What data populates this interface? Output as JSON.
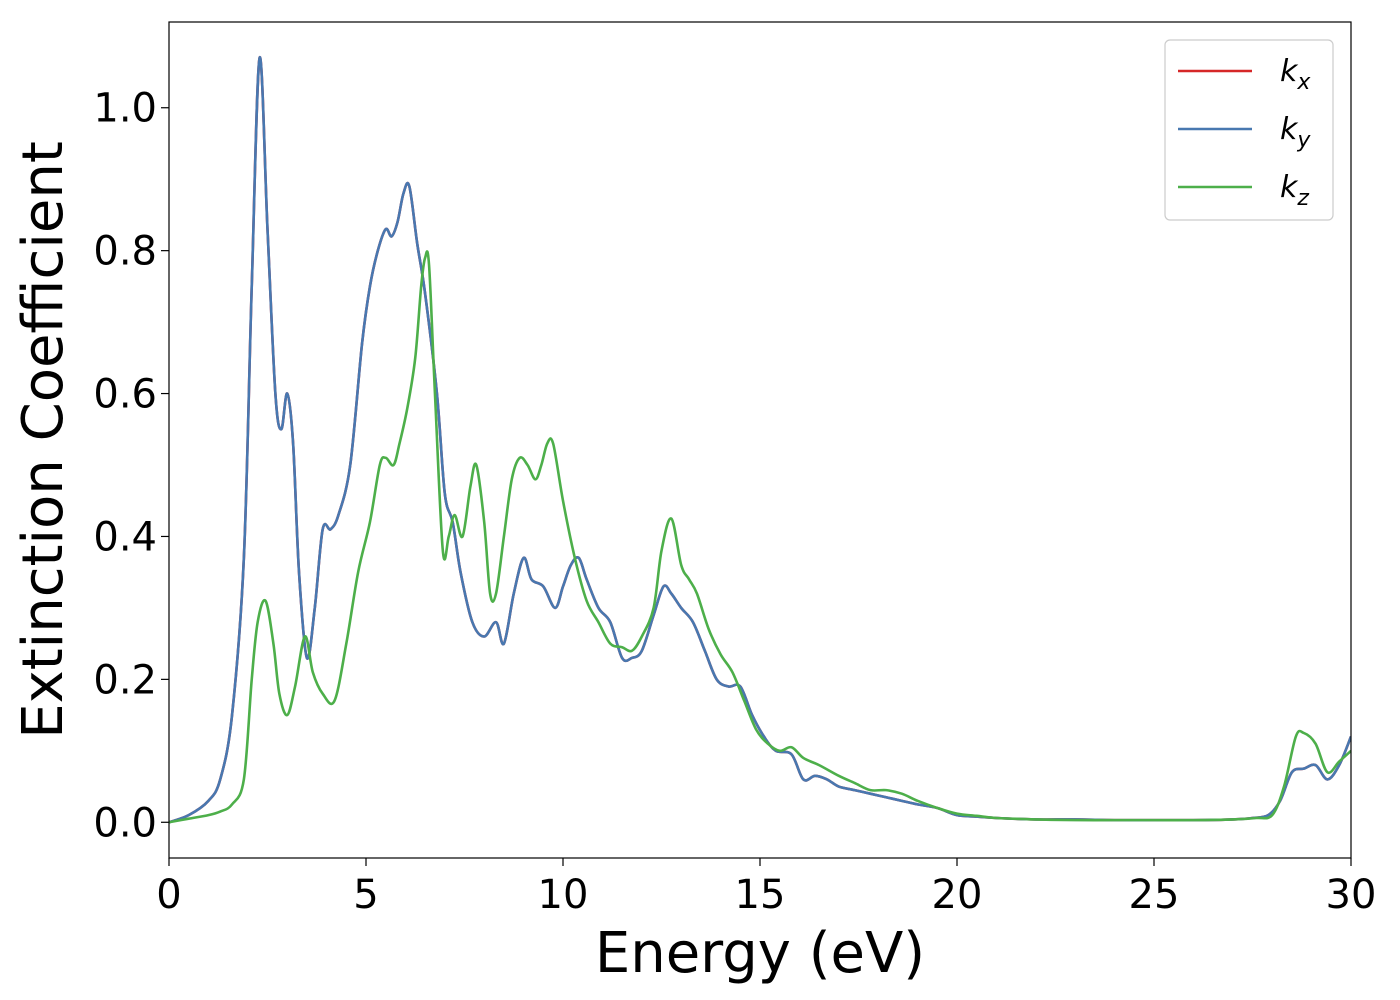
{
  "chart_data": {
    "type": "line",
    "xlabel": "Energy (eV)",
    "ylabel": "Extinction Coefficient",
    "xlim": [
      0,
      30
    ],
    "ylim": [
      -0.05,
      1.12
    ],
    "x_ticks": [
      0,
      5,
      10,
      15,
      20,
      25,
      30
    ],
    "x_tick_labels": [
      "0",
      "5",
      "10",
      "15",
      "20",
      "25",
      "30"
    ],
    "y_ticks": [
      0.0,
      0.2,
      0.4,
      0.6,
      0.8,
      1.0
    ],
    "y_tick_labels": [
      "0.0",
      "0.2",
      "0.4",
      "0.6",
      "0.8",
      "1.0"
    ],
    "grid": false,
    "legend_position": "top-right",
    "series": [
      {
        "name": "k_x",
        "label_main": "k",
        "label_sub": "x",
        "color": "#d62728",
        "x": [
          0,
          0.5,
          1.0,
          1.3,
          1.6,
          1.9,
          2.1,
          2.3,
          2.5,
          2.7,
          2.85,
          3.0,
          3.15,
          3.3,
          3.5,
          3.7,
          3.9,
          4.1,
          4.3,
          4.6,
          4.9,
          5.1,
          5.3,
          5.5,
          5.65,
          5.8,
          5.95,
          6.1,
          6.3,
          6.5,
          6.8,
          7.0,
          7.2,
          7.4,
          7.7,
          8.0,
          8.3,
          8.5,
          8.75,
          9.0,
          9.2,
          9.5,
          9.8,
          10.0,
          10.2,
          10.4,
          10.6,
          10.9,
          11.2,
          11.5,
          11.75,
          12.0,
          12.3,
          12.55,
          12.75,
          13.0,
          13.3,
          13.6,
          13.9,
          14.2,
          14.5,
          14.8,
          15.1,
          15.4,
          15.8,
          16.1,
          16.4,
          16.7,
          17.0,
          17.4,
          17.8,
          18.2,
          18.6,
          19.0,
          19.5,
          20.0,
          20.5,
          21.0,
          22.0,
          23.0,
          24.0,
          25.0,
          26.0,
          27.0,
          27.5,
          27.9,
          28.2,
          28.5,
          28.8,
          29.1,
          29.4,
          29.7,
          30.0
        ],
        "values": [
          0.0,
          0.01,
          0.03,
          0.06,
          0.15,
          0.37,
          0.75,
          1.07,
          0.83,
          0.6,
          0.55,
          0.6,
          0.53,
          0.35,
          0.23,
          0.3,
          0.41,
          0.41,
          0.43,
          0.5,
          0.67,
          0.75,
          0.8,
          0.83,
          0.82,
          0.84,
          0.88,
          0.89,
          0.81,
          0.74,
          0.6,
          0.46,
          0.42,
          0.35,
          0.28,
          0.26,
          0.28,
          0.25,
          0.32,
          0.37,
          0.34,
          0.33,
          0.3,
          0.33,
          0.36,
          0.37,
          0.34,
          0.3,
          0.28,
          0.23,
          0.23,
          0.24,
          0.29,
          0.33,
          0.32,
          0.3,
          0.28,
          0.24,
          0.2,
          0.19,
          0.19,
          0.15,
          0.12,
          0.1,
          0.095,
          0.06,
          0.065,
          0.06,
          0.05,
          0.045,
          0.04,
          0.035,
          0.03,
          0.025,
          0.02,
          0.01,
          0.008,
          0.006,
          0.004,
          0.004,
          0.003,
          0.003,
          0.003,
          0.004,
          0.006,
          0.01,
          0.03,
          0.07,
          0.075,
          0.08,
          0.06,
          0.08,
          0.12
        ]
      },
      {
        "name": "k_y",
        "label_main": "k",
        "label_sub": "y",
        "color": "#4878b0",
        "x": [
          0,
          0.5,
          1.0,
          1.3,
          1.6,
          1.9,
          2.1,
          2.3,
          2.5,
          2.7,
          2.85,
          3.0,
          3.15,
          3.3,
          3.5,
          3.7,
          3.9,
          4.1,
          4.3,
          4.6,
          4.9,
          5.1,
          5.3,
          5.5,
          5.65,
          5.8,
          5.95,
          6.1,
          6.3,
          6.5,
          6.8,
          7.0,
          7.2,
          7.4,
          7.7,
          8.0,
          8.3,
          8.5,
          8.75,
          9.0,
          9.2,
          9.5,
          9.8,
          10.0,
          10.2,
          10.4,
          10.6,
          10.9,
          11.2,
          11.5,
          11.75,
          12.0,
          12.3,
          12.55,
          12.75,
          13.0,
          13.3,
          13.6,
          13.9,
          14.2,
          14.5,
          14.8,
          15.1,
          15.4,
          15.8,
          16.1,
          16.4,
          16.7,
          17.0,
          17.4,
          17.8,
          18.2,
          18.6,
          19.0,
          19.5,
          20.0,
          20.5,
          21.0,
          22.0,
          23.0,
          24.0,
          25.0,
          26.0,
          27.0,
          27.5,
          27.9,
          28.2,
          28.5,
          28.8,
          29.1,
          29.4,
          29.7,
          30.0
        ],
        "values": [
          0.0,
          0.01,
          0.03,
          0.06,
          0.15,
          0.37,
          0.75,
          1.07,
          0.83,
          0.6,
          0.55,
          0.6,
          0.53,
          0.35,
          0.23,
          0.3,
          0.41,
          0.41,
          0.43,
          0.5,
          0.67,
          0.75,
          0.8,
          0.83,
          0.82,
          0.84,
          0.88,
          0.89,
          0.81,
          0.74,
          0.6,
          0.46,
          0.42,
          0.35,
          0.28,
          0.26,
          0.28,
          0.25,
          0.32,
          0.37,
          0.34,
          0.33,
          0.3,
          0.33,
          0.36,
          0.37,
          0.34,
          0.3,
          0.28,
          0.23,
          0.23,
          0.24,
          0.29,
          0.33,
          0.32,
          0.3,
          0.28,
          0.24,
          0.2,
          0.19,
          0.19,
          0.15,
          0.12,
          0.1,
          0.095,
          0.06,
          0.065,
          0.06,
          0.05,
          0.045,
          0.04,
          0.035,
          0.03,
          0.025,
          0.02,
          0.01,
          0.008,
          0.006,
          0.004,
          0.004,
          0.003,
          0.003,
          0.003,
          0.004,
          0.006,
          0.01,
          0.03,
          0.07,
          0.075,
          0.08,
          0.06,
          0.08,
          0.12
        ]
      },
      {
        "name": "k_z",
        "label_main": "k",
        "label_sub": "z",
        "color": "#4daf4a",
        "x": [
          0,
          0.5,
          1.0,
          1.3,
          1.6,
          1.9,
          2.1,
          2.25,
          2.45,
          2.65,
          2.8,
          3.0,
          3.2,
          3.45,
          3.65,
          3.9,
          4.2,
          4.5,
          4.8,
          5.1,
          5.35,
          5.5,
          5.7,
          5.85,
          6.05,
          6.25,
          6.4,
          6.5,
          6.6,
          6.75,
          6.95,
          7.1,
          7.25,
          7.45,
          7.65,
          7.8,
          8.0,
          8.15,
          8.3,
          8.5,
          8.7,
          8.9,
          9.1,
          9.3,
          9.45,
          9.6,
          9.75,
          10.0,
          10.3,
          10.6,
          10.9,
          11.2,
          11.5,
          11.75,
          12.0,
          12.3,
          12.5,
          12.75,
          13.0,
          13.2,
          13.4,
          13.7,
          14.0,
          14.3,
          14.6,
          14.9,
          15.2,
          15.5,
          15.8,
          16.1,
          16.5,
          17.0,
          17.4,
          17.8,
          18.2,
          18.6,
          19.0,
          19.5,
          20.0,
          20.5,
          21.0,
          22.0,
          23.0,
          24.0,
          25.0,
          26.0,
          27.0,
          27.6,
          28.0,
          28.3,
          28.6,
          28.8,
          29.1,
          29.4,
          29.7,
          30.0
        ],
        "values": [
          0.0,
          0.005,
          0.01,
          0.015,
          0.025,
          0.06,
          0.2,
          0.28,
          0.31,
          0.25,
          0.18,
          0.15,
          0.19,
          0.26,
          0.21,
          0.18,
          0.17,
          0.25,
          0.35,
          0.42,
          0.5,
          0.51,
          0.5,
          0.53,
          0.58,
          0.65,
          0.75,
          0.79,
          0.78,
          0.6,
          0.38,
          0.4,
          0.43,
          0.4,
          0.47,
          0.5,
          0.42,
          0.32,
          0.32,
          0.4,
          0.48,
          0.51,
          0.5,
          0.48,
          0.5,
          0.53,
          0.53,
          0.45,
          0.37,
          0.31,
          0.28,
          0.25,
          0.245,
          0.24,
          0.26,
          0.3,
          0.38,
          0.425,
          0.36,
          0.34,
          0.32,
          0.27,
          0.235,
          0.21,
          0.17,
          0.13,
          0.11,
          0.1,
          0.105,
          0.09,
          0.08,
          0.065,
          0.055,
          0.045,
          0.045,
          0.04,
          0.03,
          0.02,
          0.012,
          0.009,
          0.006,
          0.004,
          0.003,
          0.003,
          0.003,
          0.003,
          0.004,
          0.006,
          0.01,
          0.05,
          0.12,
          0.125,
          0.11,
          0.07,
          0.085,
          0.1
        ]
      }
    ]
  }
}
